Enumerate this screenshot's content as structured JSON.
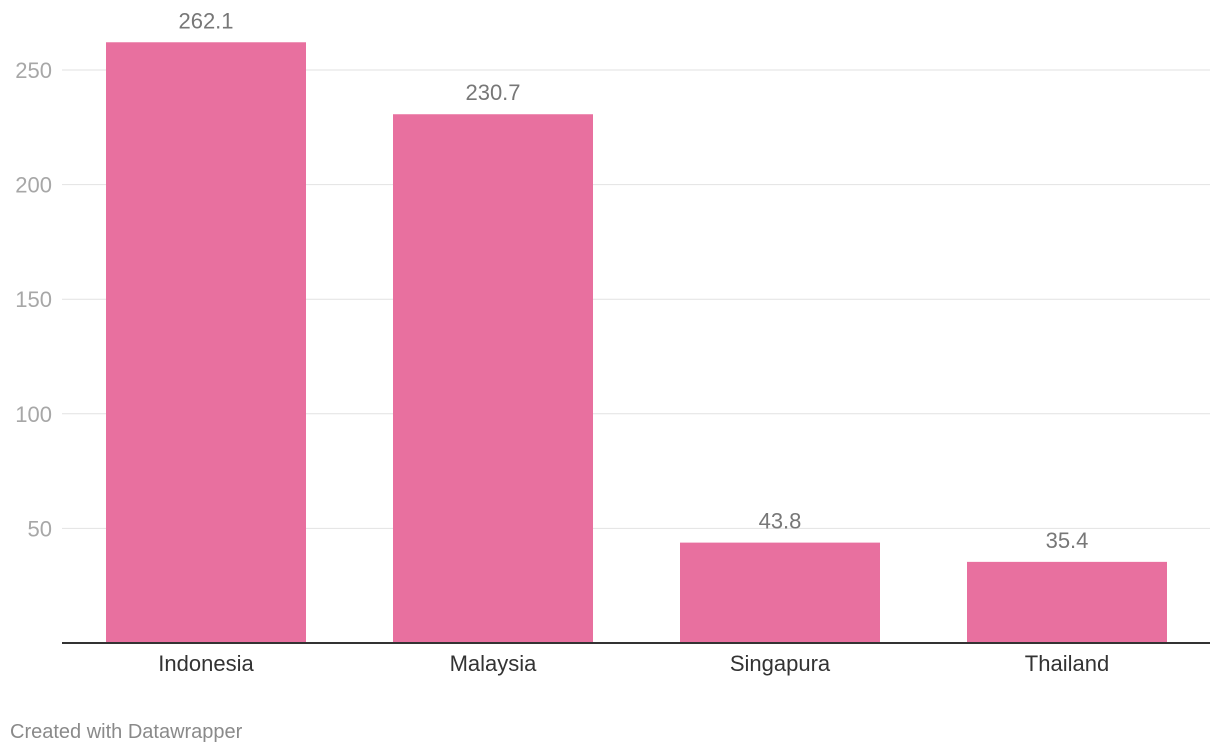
{
  "chart_data": {
    "type": "bar",
    "categories": [
      "Indonesia",
      "Malaysia",
      "Singapura",
      "Thailand"
    ],
    "values": [
      262.1,
      230.7,
      43.8,
      35.4
    ],
    "value_labels": [
      "262.1",
      "230.7",
      "43.8",
      "35.4"
    ],
    "ylim": [
      0,
      275
    ],
    "yticks": [
      50,
      100,
      150,
      200,
      250
    ],
    "ytick_labels": [
      "50",
      "100",
      "150",
      "200",
      "250"
    ],
    "grid": true,
    "bar_color": "#e8709f"
  },
  "footer": {
    "credit": "Created with Datawrapper"
  }
}
